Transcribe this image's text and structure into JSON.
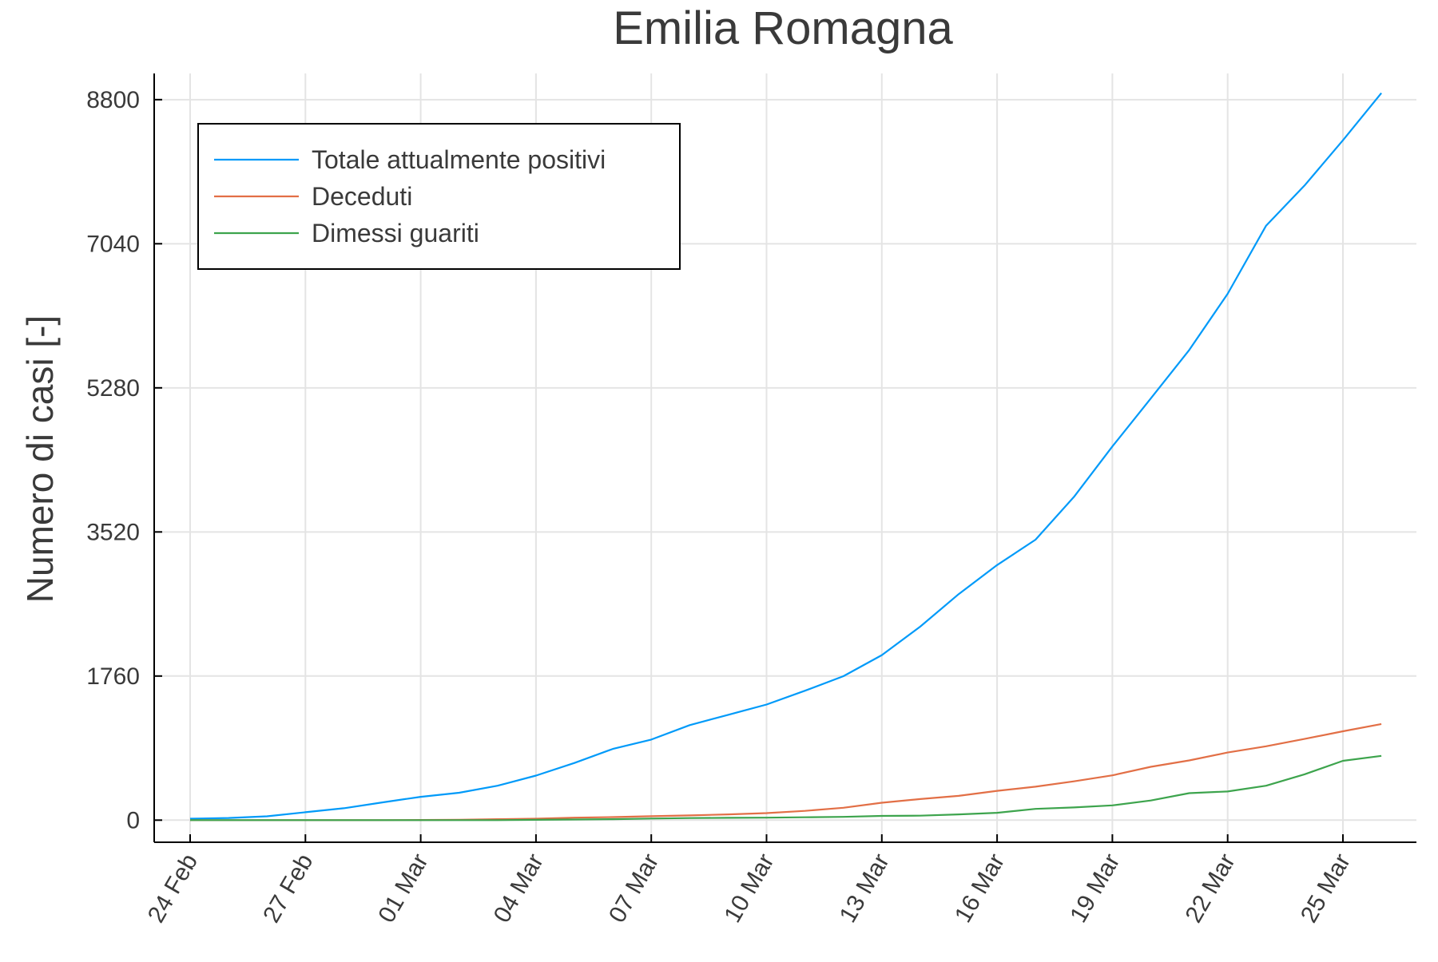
{
  "chart_data": {
    "type": "line",
    "title": "Emilia Romagna",
    "xlabel": "",
    "ylabel": "Numero di casi [-]",
    "x": [
      "24 Feb",
      "25 Feb",
      "26 Feb",
      "27 Feb",
      "28 Feb",
      "29 Feb",
      "01 Mar",
      "02 Mar",
      "03 Mar",
      "04 Mar",
      "05 Mar",
      "06 Mar",
      "07 Mar",
      "08 Mar",
      "09 Mar",
      "10 Mar",
      "11 Mar",
      "12 Mar",
      "13 Mar",
      "14 Mar",
      "15 Mar",
      "16 Mar",
      "17 Mar",
      "18 Mar",
      "19 Mar",
      "20 Mar",
      "21 Mar",
      "22 Mar",
      "23 Mar",
      "24 Mar",
      "25 Mar",
      "26 Mar"
    ],
    "xticks": [
      "24 Feb",
      "27 Feb",
      "01 Mar",
      "04 Mar",
      "07 Mar",
      "10 Mar",
      "13 Mar",
      "16 Mar",
      "19 Mar",
      "22 Mar",
      "25 Mar"
    ],
    "yticks": [
      "0",
      "1760",
      "3520",
      "5280",
      "7040",
      "8800"
    ],
    "ylim": [
      -270,
      9120
    ],
    "grid": true,
    "legend_position": "top-left",
    "series": [
      {
        "name": "Totale attualmente positivi",
        "color": "#009af9",
        "values": [
          18,
          26,
          47,
          97,
          145,
          217,
          285,
          335,
          420,
          544,
          698,
          870,
          984,
          1160,
          1286,
          1412,
          1581,
          1758,
          2016,
          2364,
          2761,
          3115,
          3426,
          3948,
          4564,
          5150,
          5742,
          6429,
          7261,
          7751,
          8304,
          8880
        ]
      },
      {
        "name": "Deceduti",
        "color": "#e26f46",
        "values": [
          0,
          0,
          0,
          0,
          0,
          0,
          2,
          4,
          12,
          18,
          30,
          37,
          48,
          58,
          70,
          86,
          113,
          151,
          213,
          258,
          297,
          358,
          409,
          474,
          547,
          651,
          729,
          826,
          902,
          992,
          1085,
          1174
        ]
      },
      {
        "name": "Dimessi guariti",
        "color": "#3da44d",
        "values": [
          0,
          0,
          0,
          0,
          0,
          0,
          0,
          0,
          0,
          4,
          8,
          12,
          20,
          25,
          28,
          30,
          35,
          40,
          52,
          55,
          70,
          90,
          138,
          155,
          180,
          240,
          330,
          350,
          420,
          560,
          725,
          785
        ]
      }
    ]
  }
}
